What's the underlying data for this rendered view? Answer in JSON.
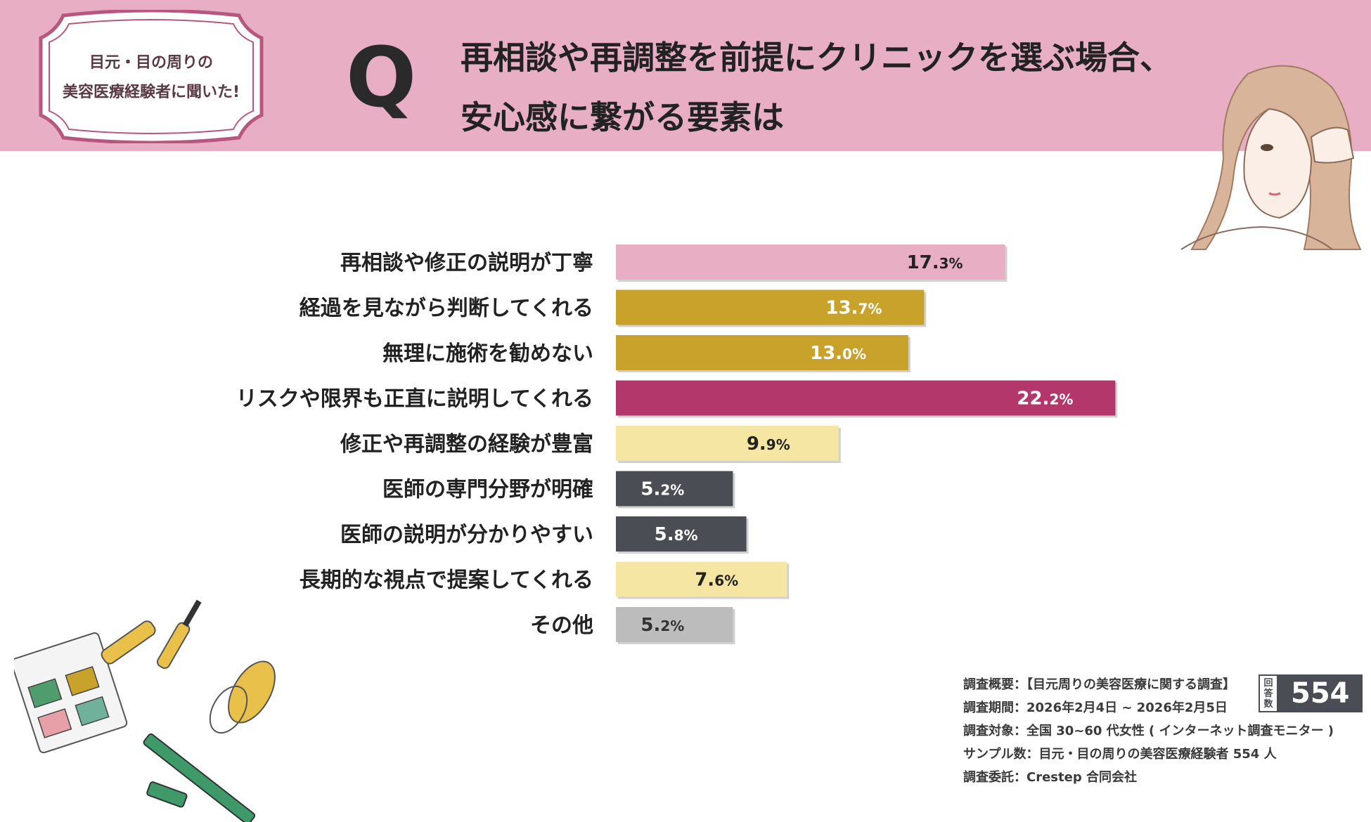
{
  "badge": {
    "line1": "目元・目の周りの",
    "line2": "美容医療経験者に聞いた!"
  },
  "question": {
    "mark": "Q",
    "line1": "再相談や再調整を前提にクリニックを選ぶ場合、",
    "line2": "安心感に繋がる要素は"
  },
  "chart_data": {
    "type": "bar",
    "orientation": "horizontal",
    "title": "再相談や再調整を前提にクリニックを選ぶ場合、安心感に繋がる要素は",
    "xlabel": "",
    "ylabel": "",
    "unit": "%",
    "xlim": [
      0,
      25
    ],
    "categories": [
      "再相談や修正の説明が丁寧",
      "経過を見ながら判断してくれる",
      "無理に施術を勧めない",
      "リスクや限界も正直に説明してくれる",
      "修正や再調整の経験が豊富",
      "医師の専門分野が明確",
      "医師の説明が分かりやすい",
      "長期的な視点で提案してくれる",
      "その他"
    ],
    "values": [
      17.3,
      13.7,
      13.0,
      22.2,
      9.9,
      5.2,
      5.8,
      7.6,
      5.2
    ],
    "colors": [
      "#e8aec4",
      "#c9a22b",
      "#c9a22b",
      "#b3376a",
      "#f5e6a3",
      "#4a4d54",
      "#4a4d54",
      "#f5e6a3",
      "#bcbcbc"
    ],
    "label_colors": [
      "#222222",
      "#ffffff",
      "#ffffff",
      "#ffffff",
      "#222222",
      "#ffffff",
      "#ffffff",
      "#222222",
      "#333333"
    ]
  },
  "summary": {
    "overview": "調査概要：【目元周りの美容医療に関する調査】",
    "period": "調査期間：2026年2月4日 ~ 2026年2月5日",
    "target": "調査対象：全国 30~60 代女性 ( インターネット調査モニター )",
    "sample": "サンプル数：目元・目の周りの美容医療経験者 554 人",
    "client": "調査委託：Crestep 合同会社"
  },
  "respondents": {
    "tag": "回答数",
    "count": "554"
  }
}
